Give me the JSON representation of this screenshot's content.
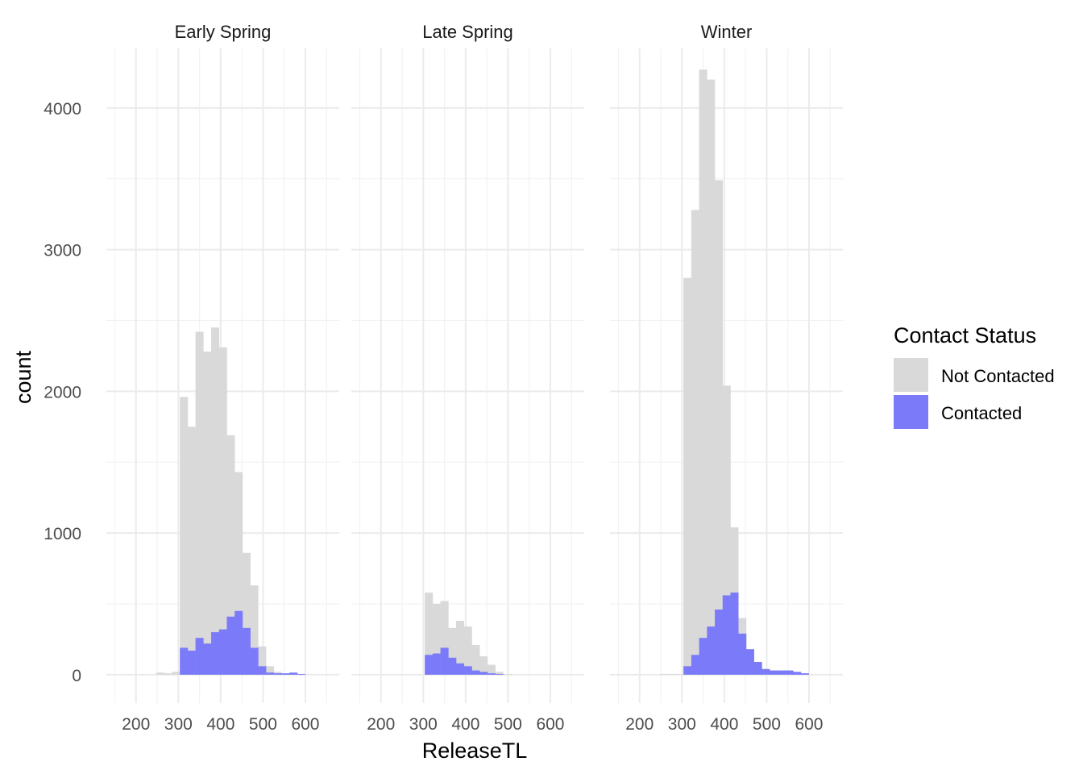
{
  "chart_data": {
    "type": "bar",
    "subtype": "faceted-overlaid-histogram",
    "xlabel": "ReleaseTL",
    "ylabel": "count",
    "xlim": [
      130,
      680
    ],
    "ylim": [
      -200,
      4420
    ],
    "x_ticks": [
      200,
      300,
      400,
      500,
      600
    ],
    "y_ticks": [
      0,
      1000,
      2000,
      3000,
      4000
    ],
    "bin_width": 18.5,
    "bin_starts": [
      248,
      266.5,
      285,
      303.5,
      322,
      340.5,
      359,
      377.5,
      396,
      414.5,
      433,
      451.5,
      470,
      488.5,
      507,
      525.5,
      544,
      562.5,
      581
    ],
    "grid": true,
    "legend": {
      "title": "Contact Status",
      "position": "right",
      "entries": [
        {
          "label": "Not Contacted",
          "color": "#d9d9d9"
        },
        {
          "label": "Contacted",
          "color": "#7b7bfa"
        }
      ]
    },
    "facets": [
      {
        "name": "Early Spring",
        "series": [
          {
            "name": "Not Contacted",
            "values": [
              15,
              10,
              20,
              1960,
              1750,
              2420,
              2280,
              2450,
              2310,
              1690,
              1430,
              860,
              630,
              200,
              60,
              20,
              10,
              10,
              5
            ]
          },
          {
            "name": "Contacted",
            "values": [
              0,
              0,
              0,
              190,
              170,
              260,
              220,
              300,
              320,
              410,
              450,
              330,
              190,
              60,
              15,
              10,
              10,
              15,
              5
            ]
          }
        ]
      },
      {
        "name": "Late Spring",
        "series": [
          {
            "name": "Not Contacted",
            "values": [
              0,
              0,
              0,
              580,
              500,
              520,
              330,
              380,
              340,
              210,
              130,
              70,
              20,
              5,
              0,
              0,
              0,
              0,
              0
            ]
          },
          {
            "name": "Contacted",
            "values": [
              0,
              0,
              0,
              140,
              150,
              190,
              120,
              80,
              60,
              30,
              20,
              10,
              5,
              0,
              0,
              0,
              0,
              0,
              0
            ]
          }
        ]
      },
      {
        "name": "Winter",
        "series": [
          {
            "name": "Not Contacted",
            "values": [
              5,
              5,
              5,
              2800,
              3280,
              4270,
              4200,
              3490,
              2040,
              1040,
              400,
              180,
              60,
              40,
              30,
              30,
              30,
              20,
              5
            ]
          },
          {
            "name": "Contacted",
            "values": [
              0,
              0,
              0,
              60,
              140,
              260,
              340,
              460,
              560,
              580,
              290,
              180,
              90,
              40,
              30,
              30,
              30,
              20,
              10
            ]
          }
        ]
      }
    ]
  }
}
